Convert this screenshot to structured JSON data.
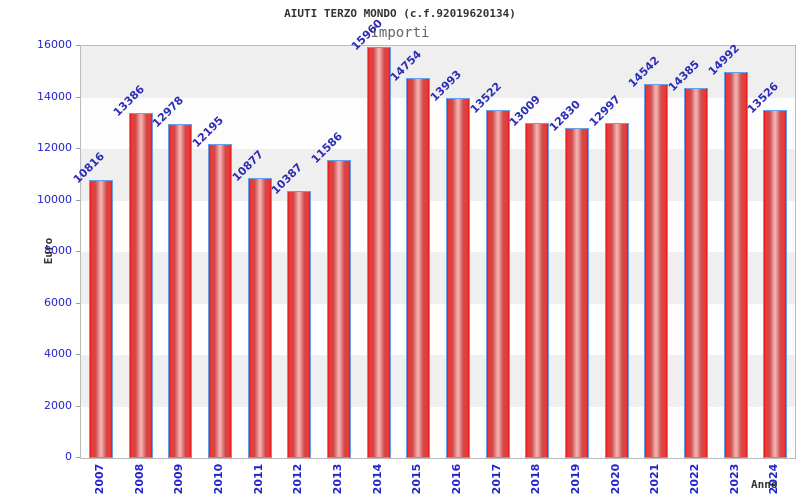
{
  "chart_data": {
    "type": "bar",
    "title": "AIUTI TERZO MONDO (c.f.92019620134)",
    "subtitle": "Importi",
    "xlabel": "Anno",
    "ylabel": "Euro",
    "categories": [
      "2007",
      "2008",
      "2009",
      "2010",
      "2011",
      "2012",
      "2013",
      "2014",
      "2015",
      "2016",
      "2017",
      "2018",
      "2019",
      "2020",
      "2021",
      "2022",
      "2023",
      "2024"
    ],
    "values": [
      10816,
      13386,
      12978,
      12195,
      10877,
      10387,
      11586,
      15960,
      14754,
      13993,
      13522,
      13009,
      12830,
      12997,
      14542,
      14385,
      14992,
      13526
    ],
    "ylim": [
      0,
      16000
    ],
    "yticks": [
      0,
      2000,
      4000,
      6000,
      8000,
      10000,
      12000,
      14000,
      16000
    ],
    "grid": "alternating-horizontal-bands",
    "legend_position": "none",
    "colors": {
      "bar_fill_edge": "#dd1c1c",
      "bar_fill_bright": "#f23535",
      "bar_fill_mid": "#cf4b4b",
      "bar_fill_center": "#f2adad",
      "bar_border": "#63a2ea",
      "value_label": "#2c2cb8",
      "tick_label": "#2424cc",
      "axis_label": "#333333",
      "band_dark": "#efefef",
      "band_light": "#fdfdfd",
      "plot_border": "#bbbbbb",
      "tick_mark": "#999999"
    }
  }
}
